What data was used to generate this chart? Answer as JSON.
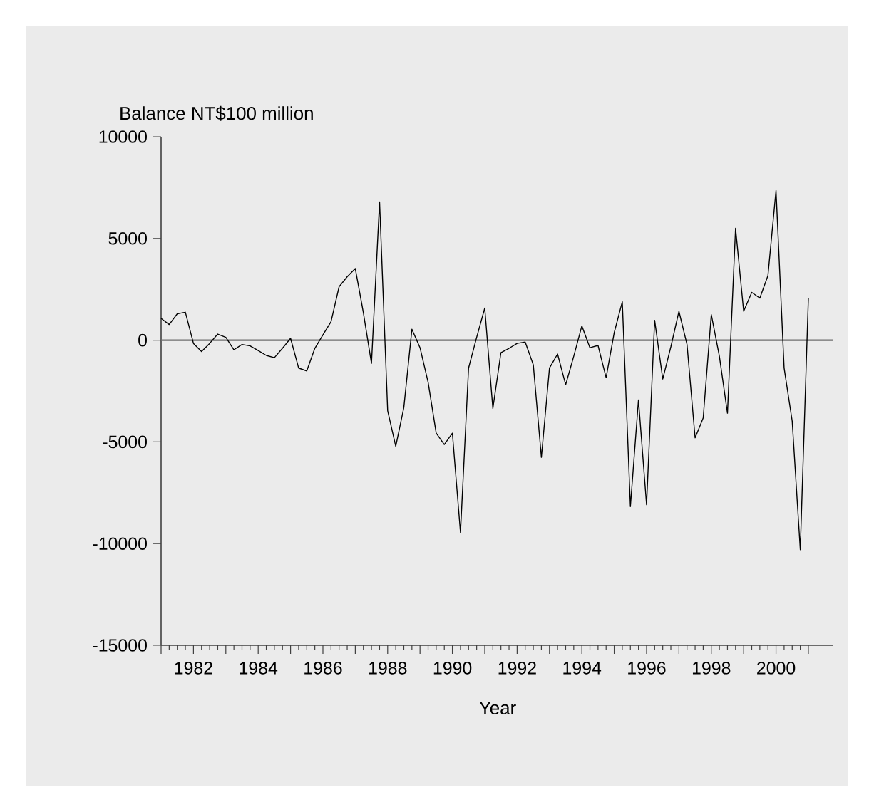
{
  "chart_data": {
    "type": "line",
    "ylabel": "Balance NT$100 million",
    "xlabel": "Year",
    "x": [
      1981,
      1981.25,
      1981.5,
      1981.75,
      1982,
      1982.25,
      1982.5,
      1982.75,
      1983,
      1983.25,
      1983.5,
      1983.75,
      1984,
      1984.25,
      1984.5,
      1984.75,
      1985,
      1985.25,
      1985.5,
      1985.75,
      1986,
      1986.25,
      1986.5,
      1986.75,
      1987,
      1987.25,
      1987.5,
      1987.75,
      1988,
      1988.25,
      1988.5,
      1988.75,
      1989,
      1989.25,
      1989.5,
      1989.75,
      1990,
      1990.25,
      1990.5,
      1990.75,
      1991,
      1991.25,
      1991.5,
      1991.75,
      1992,
      1992.25,
      1992.5,
      1992.75,
      1993,
      1993.25,
      1993.5,
      1993.75,
      1994,
      1994.25,
      1994.5,
      1994.75,
      1995,
      1995.25,
      1995.5,
      1995.75,
      1996,
      1996.25,
      1996.5,
      1996.75,
      1997,
      1997.25,
      1997.5,
      1997.75,
      1998,
      1998.25,
      1998.5,
      1998.75,
      1999,
      1999.25,
      1999.5,
      1999.75,
      2000,
      2000.25,
      2000.5,
      2000.75,
      2001
    ],
    "series": [
      {
        "color": "#000000",
        "values": [
          1070,
          770,
          1300,
          1375,
          -160,
          -560,
          -160,
          300,
          140,
          -470,
          -210,
          -280,
          -510,
          -750,
          -860,
          -400,
          90,
          -1370,
          -1510,
          -400,
          260,
          910,
          2630,
          3120,
          3520,
          1350,
          -1140,
          6800,
          -3470,
          -5220,
          -3310,
          540,
          -370,
          -2070,
          -4570,
          -5130,
          -4570,
          -9460,
          -1370,
          140,
          1580,
          -3360,
          -610,
          -400,
          -160,
          -90,
          -1210,
          -5760,
          -1370,
          -680,
          -2190,
          -790,
          700,
          -370,
          -260,
          -1840,
          370,
          1890,
          -8180,
          -2940,
          -8090,
          980,
          -1910,
          -330,
          1420,
          -210,
          -4800,
          -3820,
          1260,
          -790,
          -3590,
          5500,
          1420,
          2350,
          2070,
          3170,
          7360,
          -1370,
          -3980,
          -10300,
          2070
        ]
      }
    ],
    "xlim": [
      1981,
      2001.75
    ],
    "ylim": [
      -15000,
      10000
    ],
    "xticks": [
      {
        "value": 1981,
        "label": null
      },
      1982,
      {
        "value": 1983,
        "label": null
      },
      1984,
      {
        "value": 1985,
        "label": null
      },
      1986,
      {
        "value": 1987,
        "label": null
      },
      1988,
      {
        "value": 1989,
        "label": null
      },
      1990,
      {
        "value": 1991,
        "label": null
      },
      1992,
      {
        "value": 1993,
        "label": null
      },
      1994,
      {
        "value": 1995,
        "label": null
      },
      1996,
      {
        "value": 1997,
        "label": null
      },
      1998,
      {
        "value": 1999,
        "label": null
      },
      2000,
      {
        "value": 2001,
        "label": null
      }
    ],
    "yticks": [
      -15000,
      -10000,
      -5000,
      0,
      5000,
      10000
    ],
    "ref_lines": [
      {
        "axis": "y",
        "value": 0,
        "color": "#6e6e6e"
      }
    ]
  }
}
